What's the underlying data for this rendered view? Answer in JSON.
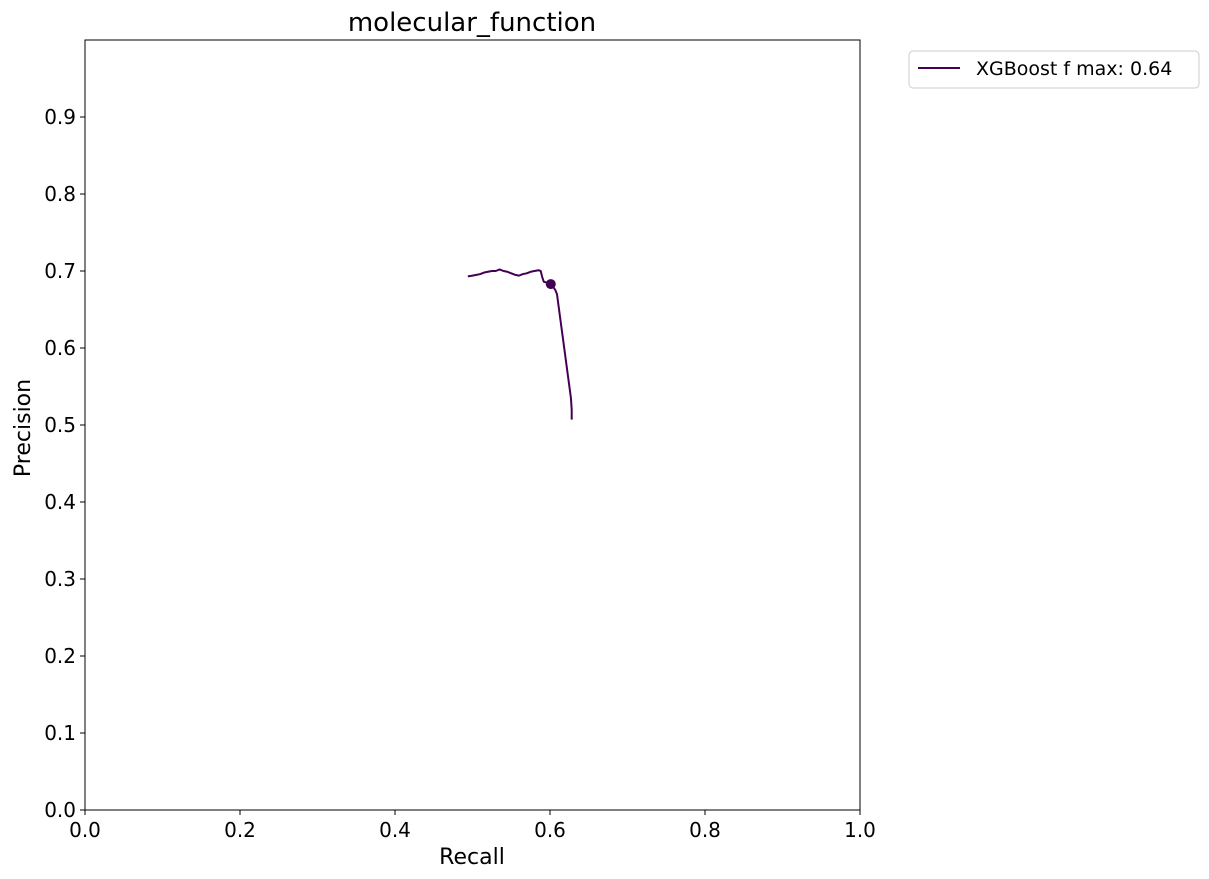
{
  "chart_data": {
    "type": "line",
    "title": "molecular_function",
    "xlabel": "Recall",
    "ylabel": "Precision",
    "xlim": [
      0.0,
      1.0
    ],
    "ylim": [
      0.0,
      1.0
    ],
    "xticks": [
      0.0,
      0.2,
      0.4,
      0.6,
      0.8,
      1.0
    ],
    "xtick_labels": [
      "0.0",
      "0.2",
      "0.4",
      "0.6",
      "0.8",
      "1.0"
    ],
    "yticks": [
      0.0,
      0.1,
      0.2,
      0.3,
      0.4,
      0.5,
      0.6,
      0.7,
      0.8,
      0.9
    ],
    "ytick_labels": [
      "0.0",
      "0.1",
      "0.2",
      "0.3",
      "0.4",
      "0.5",
      "0.6",
      "0.7",
      "0.8",
      "0.9"
    ],
    "grid": false,
    "legend_position": "outside-top-right",
    "series": [
      {
        "name": "XGBoost f max: 0.64",
        "color": "#440154",
        "points": [
          [
            0.494,
            0.693
          ],
          [
            0.5,
            0.694
          ],
          [
            0.505,
            0.695
          ],
          [
            0.51,
            0.696
          ],
          [
            0.515,
            0.698
          ],
          [
            0.52,
            0.699
          ],
          [
            0.525,
            0.7
          ],
          [
            0.53,
            0.7
          ],
          [
            0.535,
            0.702
          ],
          [
            0.54,
            0.7
          ],
          [
            0.545,
            0.699
          ],
          [
            0.55,
            0.697
          ],
          [
            0.555,
            0.695
          ],
          [
            0.56,
            0.694
          ],
          [
            0.565,
            0.696
          ],
          [
            0.57,
            0.697
          ],
          [
            0.575,
            0.699
          ],
          [
            0.58,
            0.7
          ],
          [
            0.585,
            0.701
          ],
          [
            0.588,
            0.7
          ],
          [
            0.59,
            0.692
          ],
          [
            0.592,
            0.686
          ],
          [
            0.596,
            0.685
          ],
          [
            0.6,
            0.683
          ],
          [
            0.603,
            0.681
          ],
          [
            0.605,
            0.678
          ],
          [
            0.607,
            0.675
          ],
          [
            0.609,
            0.67
          ],
          [
            0.611,
            0.655
          ],
          [
            0.613,
            0.64
          ],
          [
            0.615,
            0.625
          ],
          [
            0.617,
            0.61
          ],
          [
            0.619,
            0.595
          ],
          [
            0.621,
            0.58
          ],
          [
            0.623,
            0.565
          ],
          [
            0.625,
            0.55
          ],
          [
            0.627,
            0.535
          ],
          [
            0.628,
            0.52
          ],
          [
            0.628,
            0.507
          ]
        ],
        "marker": {
          "x": 0.601,
          "y": 0.683
        }
      }
    ]
  }
}
